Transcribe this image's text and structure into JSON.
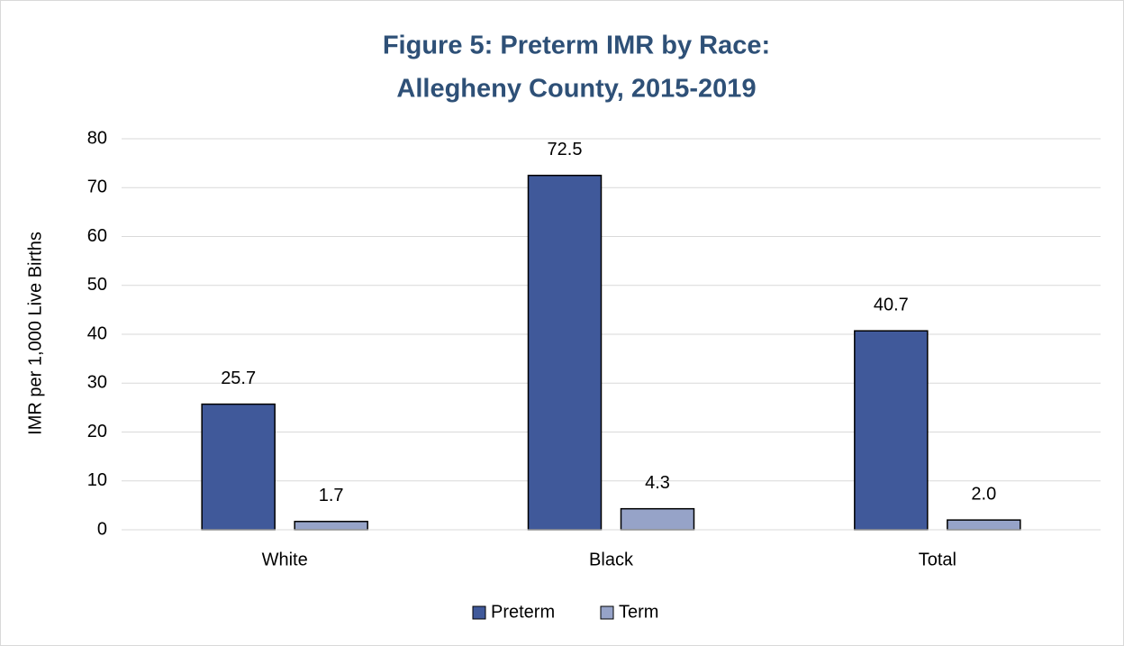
{
  "chart_data": {
    "type": "bar",
    "title": [
      "Figure 5: Preterm IMR by Race:",
      "Allegheny County, 2015-2019"
    ],
    "ylabel": "IMR per 1,000 Live Births",
    "categories": [
      "White",
      "Black",
      "Total"
    ],
    "series": [
      {
        "name": "Preterm",
        "color": "#40599a",
        "values": [
          25.7,
          72.5,
          40.7
        ],
        "value_labels": [
          "25.7",
          "72.5",
          "40.7"
        ]
      },
      {
        "name": "Term",
        "color": "#96a3c8",
        "values": [
          1.7,
          4.3,
          2.0
        ],
        "value_labels": [
          "1.7",
          "4.3",
          "2.0"
        ]
      }
    ],
    "ylim": [
      0,
      80
    ],
    "yticks": [
      0,
      10,
      20,
      30,
      40,
      50,
      60,
      70,
      80
    ],
    "grid": true,
    "legend": "bottom"
  }
}
